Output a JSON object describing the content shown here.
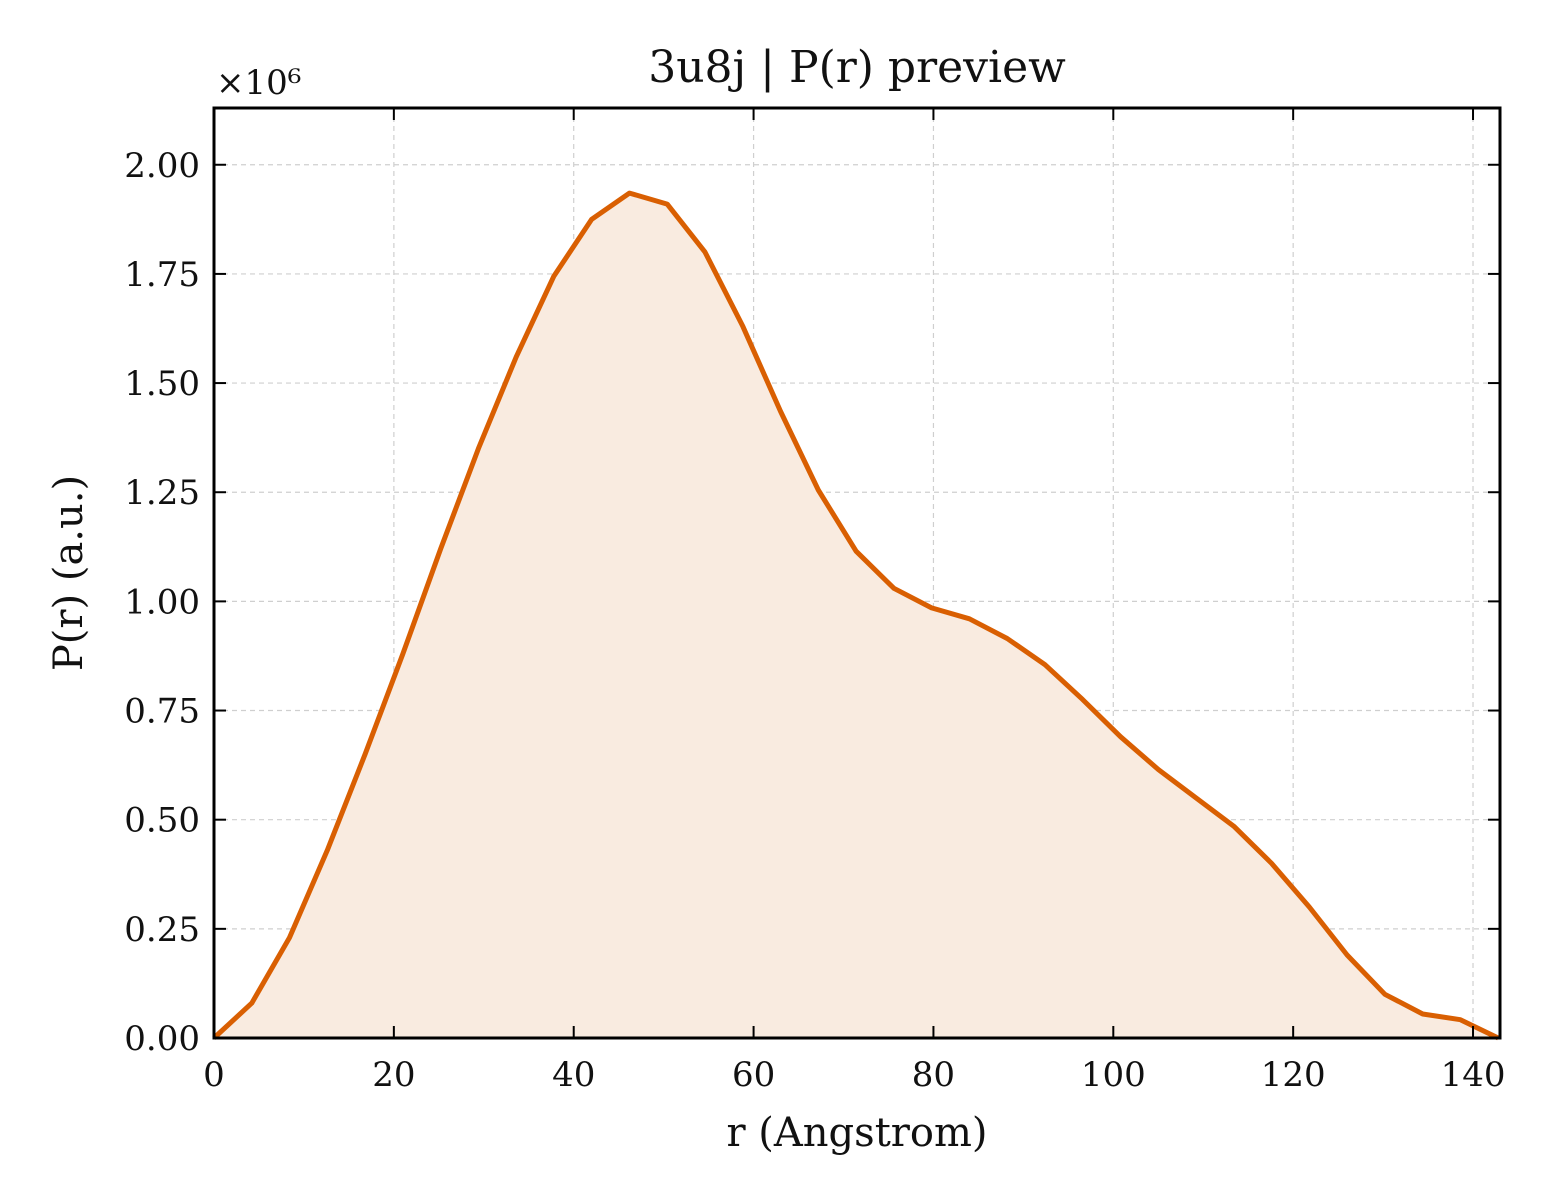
{
  "chart_data": {
    "type": "area",
    "title": "3u8j | P(r) preview",
    "xlabel": "r (Angstrom)",
    "ylabel": "P(r) (a.u.)",
    "y_multiplier": "×10⁶",
    "xlim": [
      0,
      143
    ],
    "ylim": [
      0,
      2.13
    ],
    "x_ticks": [
      0,
      20,
      40,
      60,
      80,
      100,
      120,
      140
    ],
    "x_tick_labels": [
      "0",
      "20",
      "40",
      "60",
      "80",
      "100",
      "120",
      "140"
    ],
    "y_ticks": [
      0,
      0.25,
      0.5,
      0.75,
      1.0,
      1.25,
      1.5,
      1.75,
      2.0
    ],
    "y_tick_labels": [
      "0.00",
      "0.25",
      "0.50",
      "0.75",
      "1.00",
      "1.25",
      "1.50",
      "1.75",
      "2.00"
    ],
    "grid": true,
    "series": [
      {
        "color": "#d95f02",
        "fill_color": "#f9ebe0",
        "x": [
          0,
          4.2,
          8.4,
          12.6,
          16.8,
          21.0,
          25.2,
          29.4,
          33.6,
          37.8,
          42.0,
          46.2,
          50.4,
          54.6,
          58.8,
          63.0,
          67.2,
          71.4,
          75.6,
          79.8,
          84.0,
          88.2,
          92.4,
          96.6,
          100.8,
          105.0,
          109.2,
          113.4,
          117.6,
          121.8,
          126.0,
          130.2,
          134.4,
          138.6,
          142.8
        ],
        "y": [
          0.0,
          0.08,
          0.23,
          0.43,
          0.65,
          0.88,
          1.12,
          1.35,
          1.56,
          1.745,
          1.875,
          1.935,
          1.91,
          1.8,
          1.63,
          1.435,
          1.255,
          1.115,
          1.03,
          0.985,
          0.96,
          0.915,
          0.855,
          0.775,
          0.69,
          0.615,
          0.55,
          0.485,
          0.4,
          0.3,
          0.19,
          0.1,
          0.055,
          0.042,
          0.0
        ]
      }
    ]
  }
}
